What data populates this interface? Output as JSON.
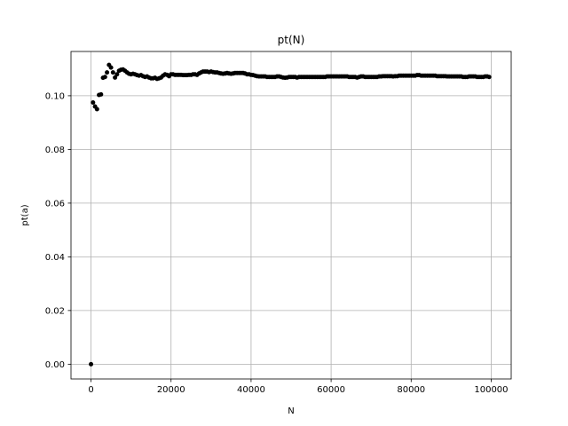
{
  "chart_data": {
    "type": "scatter",
    "title": "pt(N)",
    "xlabel": "N",
    "ylabel": "pt(a)",
    "xlim": [
      -5000,
      105000
    ],
    "ylim": [
      -0.0055,
      0.1165
    ],
    "xticks": [
      0,
      20000,
      40000,
      60000,
      80000,
      100000
    ],
    "xtick_labels": [
      "0",
      "20000",
      "40000",
      "60000",
      "80000",
      "100000"
    ],
    "yticks": [
      0.0,
      0.02,
      0.04,
      0.06,
      0.08,
      0.1
    ],
    "ytick_labels": [
      "0.00",
      "0.02",
      "0.04",
      "0.06",
      "0.08",
      "0.10"
    ],
    "grid": true,
    "marker_color": "#000000",
    "series": [
      {
        "points": [
          [
            0,
            0.0
          ],
          [
            500,
            0.0975
          ],
          [
            1000,
            0.096
          ],
          [
            1500,
            0.095
          ],
          [
            2000,
            0.1003
          ],
          [
            2500,
            0.1005
          ],
          [
            3000,
            0.1067
          ],
          [
            3500,
            0.107
          ],
          [
            4000,
            0.1087
          ],
          [
            4500,
            0.1115
          ],
          [
            5000,
            0.1105
          ],
          [
            5500,
            0.1087
          ],
          [
            6000,
            0.1068
          ],
          [
            6500,
            0.108
          ],
          [
            7000,
            0.1093
          ],
          [
            7500,
            0.1097
          ],
          [
            8000,
            0.1098
          ],
          [
            8500,
            0.1093
          ],
          [
            9000,
            0.1087
          ],
          [
            9500,
            0.1082
          ],
          [
            10000,
            0.108
          ],
          [
            10500,
            0.1082
          ],
          [
            11000,
            0.108
          ],
          [
            11500,
            0.1077
          ],
          [
            12000,
            0.1075
          ],
          [
            12500,
            0.1077
          ],
          [
            13000,
            0.1073
          ],
          [
            13500,
            0.107
          ],
          [
            14000,
            0.1072
          ],
          [
            14500,
            0.1068
          ],
          [
            15000,
            0.1065
          ],
          [
            15500,
            0.1065
          ],
          [
            16000,
            0.1067
          ],
          [
            16500,
            0.1063
          ],
          [
            17000,
            0.1065
          ],
          [
            17500,
            0.1068
          ],
          [
            18000,
            0.1075
          ],
          [
            18500,
            0.108
          ],
          [
            19000,
            0.1078
          ],
          [
            19500,
            0.1073
          ],
          [
            20000,
            0.108
          ],
          [
            20500,
            0.108
          ],
          [
            21000,
            0.1078
          ],
          [
            21500,
            0.1078
          ],
          [
            22000,
            0.1078
          ],
          [
            22500,
            0.1078
          ],
          [
            23000,
            0.1077
          ],
          [
            23500,
            0.1077
          ],
          [
            24000,
            0.1077
          ],
          [
            24500,
            0.1078
          ],
          [
            25000,
            0.1078
          ],
          [
            25500,
            0.108
          ],
          [
            26000,
            0.108
          ],
          [
            26500,
            0.1078
          ],
          [
            27000,
            0.1083
          ],
          [
            27500,
            0.1087
          ],
          [
            28000,
            0.109
          ],
          [
            28500,
            0.109
          ],
          [
            29000,
            0.109
          ],
          [
            29500,
            0.1088
          ],
          [
            30000,
            0.109
          ],
          [
            30500,
            0.1088
          ],
          [
            31000,
            0.1087
          ],
          [
            31500,
            0.1087
          ],
          [
            32000,
            0.1085
          ],
          [
            32500,
            0.1083
          ],
          [
            33000,
            0.1082
          ],
          [
            33500,
            0.1083
          ],
          [
            34000,
            0.1085
          ],
          [
            34500,
            0.1083
          ],
          [
            35000,
            0.1082
          ],
          [
            35500,
            0.1083
          ],
          [
            36000,
            0.1085
          ],
          [
            36500,
            0.1085
          ],
          [
            37000,
            0.1085
          ],
          [
            37500,
            0.1085
          ],
          [
            38000,
            0.1085
          ],
          [
            38500,
            0.1083
          ],
          [
            39000,
            0.108
          ],
          [
            39500,
            0.108
          ],
          [
            40000,
            0.1078
          ],
          [
            40500,
            0.1077
          ],
          [
            41000,
            0.1075
          ],
          [
            41500,
            0.1073
          ],
          [
            42000,
            0.1072
          ],
          [
            42500,
            0.1072
          ],
          [
            43000,
            0.1072
          ],
          [
            43500,
            0.1072
          ],
          [
            44000,
            0.107
          ],
          [
            44500,
            0.107
          ],
          [
            45000,
            0.107
          ],
          [
            45500,
            0.107
          ],
          [
            46000,
            0.107
          ],
          [
            46500,
            0.1072
          ],
          [
            47000,
            0.1072
          ],
          [
            47500,
            0.107
          ],
          [
            48000,
            0.1068
          ],
          [
            48500,
            0.1067
          ],
          [
            49000,
            0.1068
          ],
          [
            49500,
            0.107
          ],
          [
            50000,
            0.107
          ],
          [
            50500,
            0.107
          ],
          [
            51000,
            0.107
          ],
          [
            51500,
            0.1068
          ],
          [
            52000,
            0.107
          ],
          [
            52500,
            0.107
          ],
          [
            53000,
            0.107
          ],
          [
            53500,
            0.107
          ],
          [
            54000,
            0.107
          ],
          [
            54500,
            0.107
          ],
          [
            55000,
            0.107
          ],
          [
            55500,
            0.107
          ],
          [
            56000,
            0.107
          ],
          [
            56500,
            0.107
          ],
          [
            57000,
            0.107
          ],
          [
            57500,
            0.107
          ],
          [
            58000,
            0.107
          ],
          [
            58500,
            0.107
          ],
          [
            59000,
            0.1072
          ],
          [
            59500,
            0.1072
          ],
          [
            60000,
            0.1072
          ],
          [
            60500,
            0.1072
          ],
          [
            61000,
            0.1072
          ],
          [
            61500,
            0.1072
          ],
          [
            62000,
            0.1072
          ],
          [
            62500,
            0.1072
          ],
          [
            63000,
            0.1072
          ],
          [
            63500,
            0.1072
          ],
          [
            64000,
            0.1072
          ],
          [
            64500,
            0.107
          ],
          [
            65000,
            0.107
          ],
          [
            65500,
            0.107
          ],
          [
            66000,
            0.107
          ],
          [
            66500,
            0.1068
          ],
          [
            67000,
            0.107
          ],
          [
            67500,
            0.1072
          ],
          [
            68000,
            0.1072
          ],
          [
            68500,
            0.107
          ],
          [
            69000,
            0.107
          ],
          [
            69500,
            0.107
          ],
          [
            70000,
            0.107
          ],
          [
            70500,
            0.107
          ],
          [
            71000,
            0.107
          ],
          [
            71500,
            0.107
          ],
          [
            72000,
            0.1072
          ],
          [
            72500,
            0.1072
          ],
          [
            73000,
            0.1073
          ],
          [
            73500,
            0.1073
          ],
          [
            74000,
            0.1073
          ],
          [
            74500,
            0.1073
          ],
          [
            75000,
            0.1073
          ],
          [
            75500,
            0.1072
          ],
          [
            76000,
            0.1073
          ],
          [
            76500,
            0.1073
          ],
          [
            77000,
            0.1075
          ],
          [
            77500,
            0.1075
          ],
          [
            78000,
            0.1075
          ],
          [
            78500,
            0.1075
          ],
          [
            79000,
            0.1075
          ],
          [
            79500,
            0.1075
          ],
          [
            80000,
            0.1075
          ],
          [
            80500,
            0.1075
          ],
          [
            81000,
            0.1075
          ],
          [
            81500,
            0.1077
          ],
          [
            82000,
            0.1077
          ],
          [
            82500,
            0.1075
          ],
          [
            83000,
            0.1075
          ],
          [
            83500,
            0.1075
          ],
          [
            84000,
            0.1075
          ],
          [
            84500,
            0.1075
          ],
          [
            85000,
            0.1075
          ],
          [
            85500,
            0.1075
          ],
          [
            86000,
            0.1075
          ],
          [
            86500,
            0.1073
          ],
          [
            87000,
            0.1073
          ],
          [
            87500,
            0.1073
          ],
          [
            88000,
            0.1073
          ],
          [
            88500,
            0.1073
          ],
          [
            89000,
            0.1072
          ],
          [
            89500,
            0.1072
          ],
          [
            90000,
            0.1072
          ],
          [
            90500,
            0.1072
          ],
          [
            91000,
            0.1072
          ],
          [
            91500,
            0.1072
          ],
          [
            92000,
            0.1072
          ],
          [
            92500,
            0.1072
          ],
          [
            93000,
            0.107
          ],
          [
            93500,
            0.107
          ],
          [
            94000,
            0.107
          ],
          [
            94500,
            0.1072
          ],
          [
            95000,
            0.1072
          ],
          [
            95500,
            0.1072
          ],
          [
            96000,
            0.1072
          ],
          [
            96500,
            0.107
          ],
          [
            97000,
            0.107
          ],
          [
            97500,
            0.107
          ],
          [
            98000,
            0.107
          ],
          [
            98500,
            0.1072
          ],
          [
            99000,
            0.1072
          ],
          [
            99500,
            0.107
          ]
        ]
      }
    ]
  }
}
